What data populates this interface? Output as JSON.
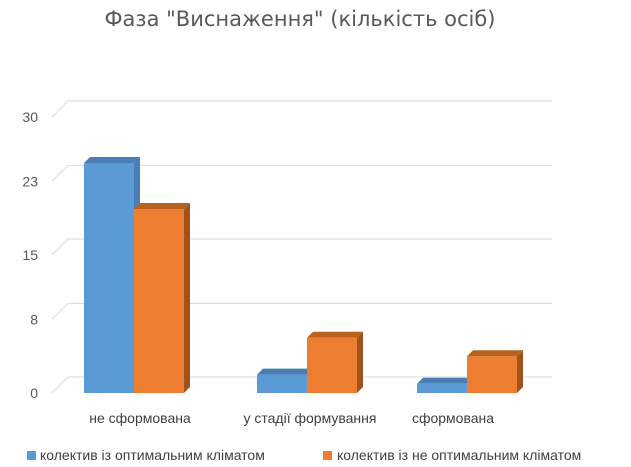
{
  "chart_data": {
    "type": "bar",
    "title": "Фаза \"Виснаження\" (кількість осіб)",
    "categories": [
      "не сформована",
      "у стадії формування",
      "сформована"
    ],
    "series": [
      {
        "name": "колектив із оптимальним кліматом",
        "values": [
          25,
          2,
          1
        ]
      },
      {
        "name": "колектив із не оптимальним кліматом",
        "values": [
          20,
          6,
          4
        ]
      }
    ],
    "yticks": [
      "0",
      "8",
      "15",
      "23",
      "30"
    ],
    "ylim": [
      0,
      30
    ],
    "grid": true,
    "legend_position": "bottom",
    "style_3d": true,
    "colors": {
      "series1": "#5b9bd5",
      "series1_top": "#4a7fb5",
      "series2": "#ed7d31",
      "series2_top": "#b8621f",
      "series2_side": "#a0521a",
      "grid": "#d9d9d9",
      "floor": "#d9d9d9"
    }
  }
}
